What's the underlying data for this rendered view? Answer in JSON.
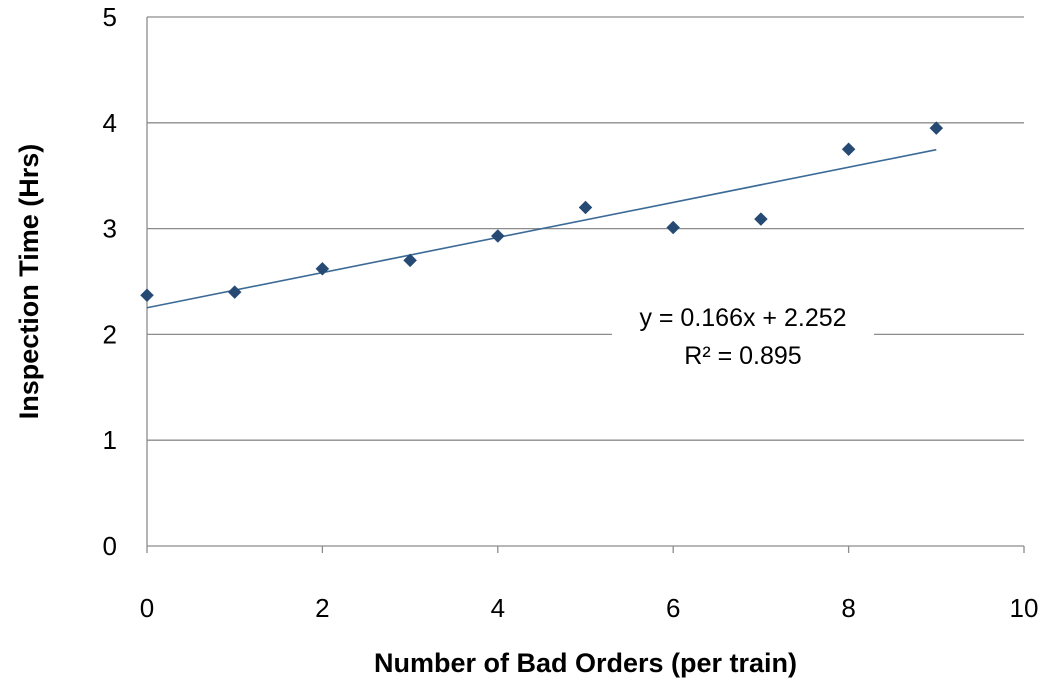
{
  "chart_data": {
    "type": "scatter",
    "title": "",
    "xlabel": "Number of Bad Orders (per train)",
    "ylabel": "Inspection Time (Hrs)",
    "xlim": [
      0,
      10
    ],
    "ylim": [
      0,
      5
    ],
    "xticks": [
      0,
      2,
      4,
      6,
      8,
      10
    ],
    "yticks": [
      0,
      1,
      2,
      3,
      4,
      5
    ],
    "grid": "horizontal",
    "legend": "none",
    "series": [
      {
        "marker": "diamond",
        "color": "#264a73",
        "points": [
          {
            "x": 0,
            "y": 2.37
          },
          {
            "x": 1,
            "y": 2.4
          },
          {
            "x": 2,
            "y": 2.62
          },
          {
            "x": 3,
            "y": 2.7
          },
          {
            "x": 4,
            "y": 2.93
          },
          {
            "x": 5,
            "y": 3.2
          },
          {
            "x": 6,
            "y": 3.01
          },
          {
            "x": 7,
            "y": 3.09
          },
          {
            "x": 8,
            "y": 3.75
          },
          {
            "x": 9,
            "y": 3.95
          }
        ]
      }
    ],
    "trendline": {
      "type": "linear",
      "slope": 0.166,
      "intercept": 2.252,
      "x_range": [
        0,
        9
      ],
      "color": "#3b6a96",
      "equation_label": "y = 0.166x + 2.252",
      "r2_label": "R² = 0.895"
    }
  }
}
